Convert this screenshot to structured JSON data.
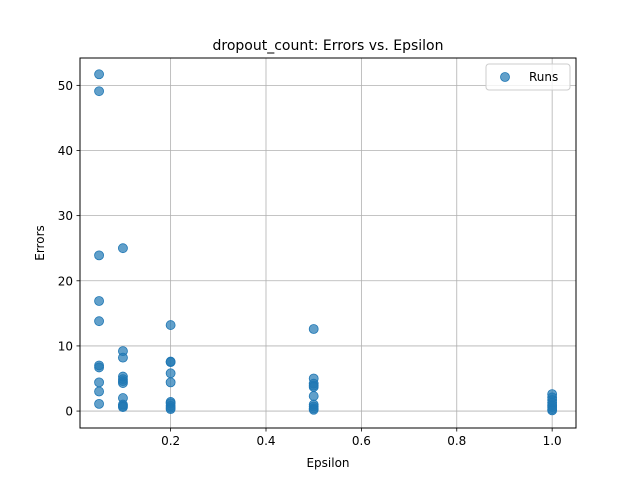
{
  "chart_data": {
    "type": "scatter",
    "title": "dropout_count: Errors vs. Epsilon",
    "xlabel": "Epsilon",
    "ylabel": "Errors",
    "xlim": [
      0.01,
      1.05
    ],
    "ylim": [
      -2.6,
      54.2
    ],
    "xticks": [
      0.2,
      0.4,
      0.6,
      0.8,
      1.0
    ],
    "xtick_labels": [
      "0.2",
      "0.4",
      "0.6",
      "0.8",
      "1.0"
    ],
    "yticks": [
      0,
      10,
      20,
      30,
      40,
      50
    ],
    "ytick_labels": [
      "0",
      "10",
      "20",
      "30",
      "40",
      "50"
    ],
    "grid": true,
    "legend_position": "top-right",
    "series": [
      {
        "name": "Runs",
        "color": "#1f77b4",
        "x": [
          0.05,
          0.05,
          0.05,
          0.05,
          0.05,
          0.05,
          0.05,
          0.05,
          0.05,
          0.05,
          0.1,
          0.1,
          0.1,
          0.1,
          0.1,
          0.1,
          0.1,
          0.1,
          0.1,
          0.1,
          0.1,
          0.2,
          0.2,
          0.2,
          0.2,
          0.2,
          0.2,
          0.2,
          0.2,
          0.2,
          0.2,
          0.5,
          0.5,
          0.5,
          0.5,
          0.5,
          0.5,
          0.5,
          0.5,
          0.5,
          0.5,
          1.0,
          1.0,
          1.0,
          1.0,
          1.0,
          1.0,
          1.0,
          1.0
        ],
        "y": [
          51.7,
          49.1,
          23.9,
          16.9,
          13.8,
          7.0,
          6.7,
          4.4,
          3.0,
          1.1,
          25.0,
          9.2,
          8.2,
          5.3,
          4.9,
          4.6,
          4.3,
          2.0,
          1.0,
          0.6,
          0.8,
          13.2,
          7.6,
          7.5,
          5.8,
          4.4,
          1.4,
          1.2,
          0.8,
          0.5,
          0.3,
          12.6,
          5.0,
          4.2,
          3.9,
          3.7,
          2.3,
          1.0,
          0.7,
          0.4,
          0.2,
          2.6,
          2.1,
          1.7,
          1.3,
          0.9,
          0.6,
          0.3,
          0.1
        ]
      }
    ]
  }
}
